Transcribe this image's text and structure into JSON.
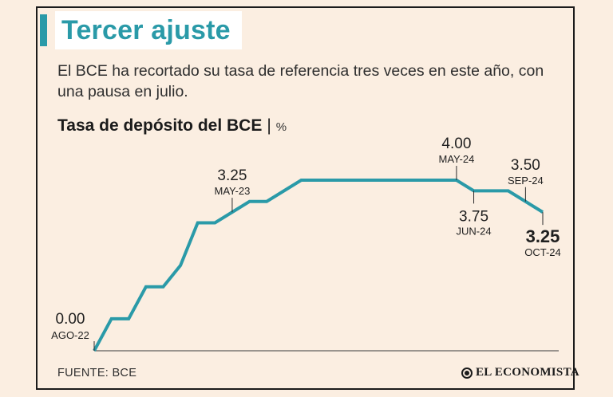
{
  "header": {
    "title": "Tercer ajuste",
    "subtitle": "El BCE ha recortado su tasa de referencia tres veces en este año, con una pausa en julio."
  },
  "chart_heading": {
    "title": "Tasa de depósito del BCE",
    "separator": "|",
    "unit": "%"
  },
  "chart_data": {
    "type": "line",
    "title": "Tasa de depósito del BCE",
    "ylabel": "%",
    "xlabel": "",
    "ylim": [
      -0.2,
      4.4
    ],
    "x_index_range": [
      0,
      26
    ],
    "points": [
      {
        "i": 0,
        "y": 0.0
      },
      {
        "i": 1,
        "y": 0.75
      },
      {
        "i": 2,
        "y": 0.75
      },
      {
        "i": 3,
        "y": 1.5
      },
      {
        "i": 4,
        "y": 1.5
      },
      {
        "i": 5,
        "y": 2.0
      },
      {
        "i": 6,
        "y": 3.0
      },
      {
        "i": 7,
        "y": 3.0
      },
      {
        "i": 8,
        "y": 3.25
      },
      {
        "i": 9,
        "y": 3.5
      },
      {
        "i": 10,
        "y": 3.5
      },
      {
        "i": 11,
        "y": 3.75
      },
      {
        "i": 12,
        "y": 4.0
      },
      {
        "i": 21,
        "y": 4.0
      },
      {
        "i": 22,
        "y": 3.75
      },
      {
        "i": 24,
        "y": 3.75
      },
      {
        "i": 25,
        "y": 3.5
      },
      {
        "i": 26,
        "y": 3.25
      }
    ],
    "annotations": [
      {
        "i": 0,
        "value": "0.00",
        "date": "AGO-22",
        "placement": "left",
        "bold": false
      },
      {
        "i": 8,
        "value": "3.25",
        "date": "MAY-23",
        "placement": "above",
        "bold": false
      },
      {
        "i": 21,
        "value": "4.00",
        "date": "MAY-24",
        "placement": "above",
        "bold": false
      },
      {
        "i": 22,
        "value": "3.75",
        "date": "JUN-24",
        "placement": "below",
        "bold": false
      },
      {
        "i": 25,
        "value": "3.50",
        "date": "SEP-24",
        "placement": "above",
        "bold": false
      },
      {
        "i": 26,
        "value": "3.25",
        "date": "OCT-24",
        "placement": "below",
        "bold": true
      }
    ],
    "line_color": "#2a9aa8"
  },
  "footer": {
    "source": "FUENTE: BCE",
    "brand": "EL ECONOMISTA"
  }
}
